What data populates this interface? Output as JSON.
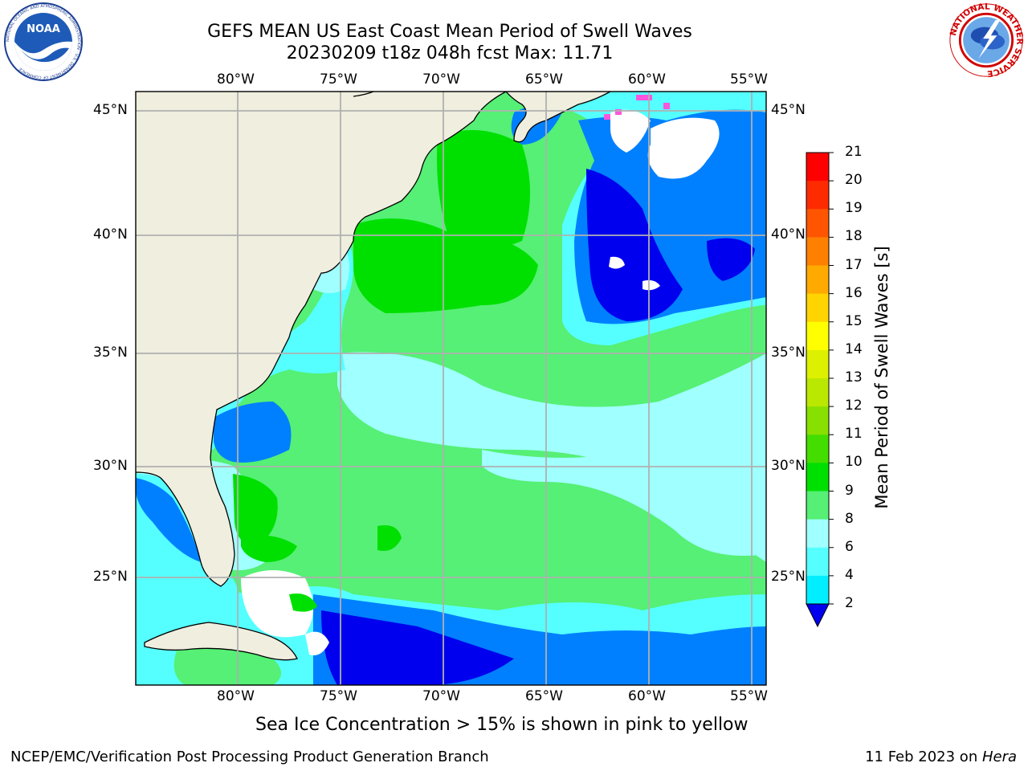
{
  "title": {
    "line1": "GEFS MEAN US East Coast Mean Period of Swell Waves",
    "line2": "20230209 t18z 048h fcst   Max: 11.71"
  },
  "logos": {
    "left_icon": "noaa-logo",
    "right_icon": "nws-logo",
    "noaa_text": "NOAA",
    "noaa_ring": "NATIONAL OCEANIC AND ATMOSPHERIC ADMINISTRATION · U.S. DEPARTMENT OF COMMERCE",
    "nws_ring": "NATIONAL WEATHER SERVICE"
  },
  "map": {
    "lon_labels": [
      "80°W",
      "75°W",
      "70°W",
      "65°W",
      "60°W",
      "55°W"
    ],
    "lat_labels": [
      "45°N",
      "40°N",
      "35°N",
      "30°N",
      "25°N"
    ],
    "land_color": "#efeedf",
    "grid_color": "#b0b0b0"
  },
  "colorbar": {
    "title": "Mean Period of Swell Waves [s]",
    "ticks": [
      "21",
      "20",
      "19",
      "18",
      "17",
      "16",
      "15",
      "14",
      "13",
      "12",
      "11",
      "10",
      "9",
      "8",
      "6",
      "4",
      "2"
    ],
    "colors": [
      "#ff0000",
      "#ff2b00",
      "#ff5500",
      "#ff8000",
      "#ffaa00",
      "#ffd400",
      "#ffff00",
      "#ddf000",
      "#bbe800",
      "#88e000",
      "#44dd00",
      "#00e000",
      "#55f075",
      "#a0ffff",
      "#55ffff",
      "#00eeff",
      "#0080ff",
      "#0000ee"
    ]
  },
  "footer": {
    "note": "Sea Ice Concentration > 15% is shown in pink to yellow",
    "left": "NCEP/EMC/Verification Post Processing Product Generation Branch",
    "date": "11 Feb 2023 on ",
    "machine": "Hera"
  }
}
